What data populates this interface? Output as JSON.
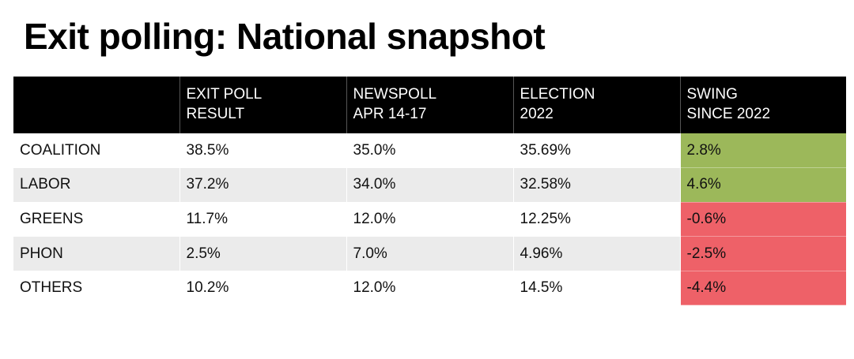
{
  "chart_data": {
    "type": "table",
    "title": "Exit polling: National snapshot",
    "columns": [
      {
        "line1": "",
        "line2": ""
      },
      {
        "line1": "EXIT POLL",
        "line2": "RESULT"
      },
      {
        "line1": "NEWSPOLL",
        "line2": "APR 14-17"
      },
      {
        "line1": "ELECTION",
        "line2": "2022"
      },
      {
        "line1": "SWING",
        "line2": "SINCE 2022"
      }
    ],
    "rows": [
      {
        "party": "COALITION",
        "exit_poll": "38.5%",
        "newspoll": "35.0%",
        "election_2022": "35.69%",
        "swing": "2.8%",
        "swing_value": 2.8
      },
      {
        "party": "LABOR",
        "exit_poll": "37.2%",
        "newspoll": "34.0%",
        "election_2022": "32.58%",
        "swing": "4.6%",
        "swing_value": 4.6
      },
      {
        "party": "GREENS",
        "exit_poll": "11.7%",
        "newspoll": "12.0%",
        "election_2022": "12.25%",
        "swing": "-0.6%",
        "swing_value": -0.6
      },
      {
        "party": "PHON",
        "exit_poll": "2.5%",
        "newspoll": "7.0%",
        "election_2022": "4.96%",
        "swing": "-2.5%",
        "swing_value": -2.5
      },
      {
        "party": "OTHERS",
        "exit_poll": "10.2%",
        "newspoll": "12.0%",
        "election_2022": "14.5%",
        "swing": "-4.4%",
        "swing_value": -4.4
      }
    ],
    "colors": {
      "header_bg": "#000000",
      "header_text": "#ffffff",
      "row_alt": "#ebebeb",
      "swing_positive": "#9cb85a",
      "swing_negative": "#ee6168"
    }
  }
}
